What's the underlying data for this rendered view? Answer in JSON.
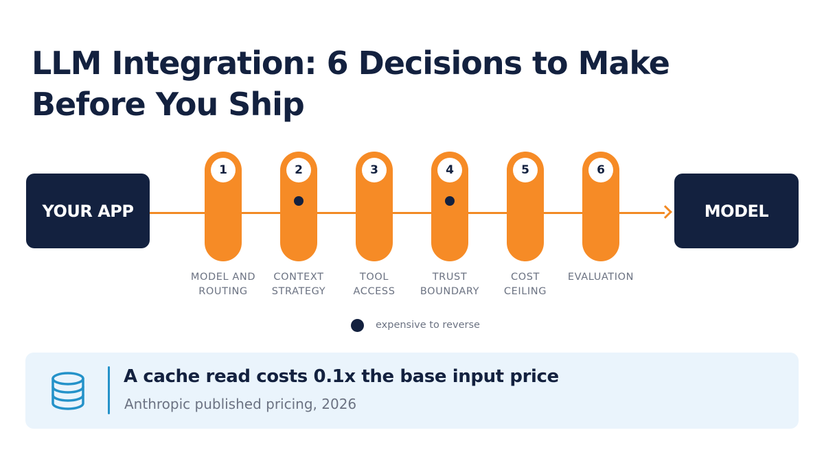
{
  "title": {
    "line1": "LLM Integration: 6 Decisions to Make",
    "line2": "Before You Ship"
  },
  "flow": {
    "source_label": "YOUR APP",
    "target_label": "MODEL",
    "accent_color": "#f68b26",
    "dark_color": "#13213f"
  },
  "steps": [
    {
      "number": "1",
      "label_line1": "MODEL AND",
      "label_line2": "ROUTING",
      "expensive_to_reverse": false
    },
    {
      "number": "2",
      "label_line1": "CONTEXT",
      "label_line2": "STRATEGY",
      "expensive_to_reverse": true
    },
    {
      "number": "3",
      "label_line1": "TOOL",
      "label_line2": "ACCESS",
      "expensive_to_reverse": false
    },
    {
      "number": "4",
      "label_line1": "TRUST",
      "label_line2": "BOUNDARY",
      "expensive_to_reverse": true
    },
    {
      "number": "5",
      "label_line1": "COST",
      "label_line2": "CEILING",
      "expensive_to_reverse": false
    },
    {
      "number": "6",
      "label_line1": "EVALUATION",
      "label_line2": "",
      "expensive_to_reverse": false
    }
  ],
  "legend": {
    "dot_meaning": "expensive to reverse"
  },
  "callout": {
    "icon": "database-icon",
    "headline": "A cache read costs 0.1x the base input price",
    "source": "Anthropic published pricing, 2026",
    "accent_color": "#2492c9",
    "background_color": "#eaf4fc"
  }
}
